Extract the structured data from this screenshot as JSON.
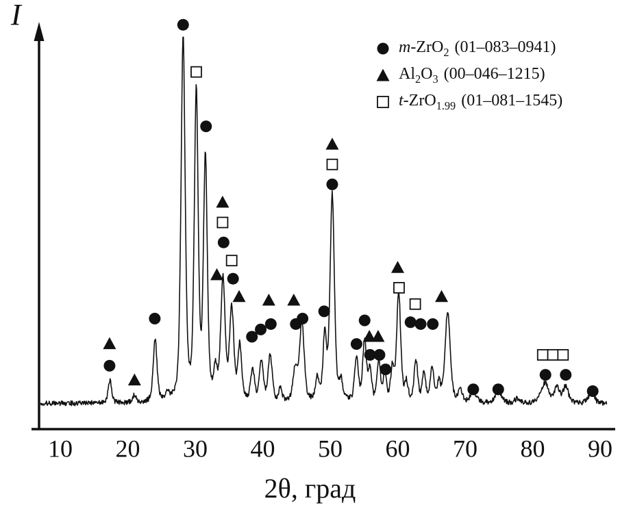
{
  "figure": {
    "ylabel": "I",
    "xlabel": "2θ, град"
  },
  "chart_data": {
    "type": "line",
    "subtype": "xrd-diffractogram",
    "title": "",
    "xlabel": "2θ, град",
    "ylabel": "I",
    "xlim": [
      7,
      91
    ],
    "x_ticks": [
      10,
      20,
      30,
      40,
      50,
      60,
      70,
      80,
      90
    ],
    "grid": false,
    "legend_position": "top-right",
    "curve_color": "#111111",
    "background_level": 1.6,
    "noise_amplitude": 1.4,
    "peaks_format": "[two_theta_deg, relative_intensity, half_width_deg]",
    "peaks": [
      [
        17.35,
        6.5,
        0.3
      ],
      [
        21.0,
        2.2,
        0.25
      ],
      [
        24.05,
        17,
        0.34
      ],
      [
        25.9,
        2.5,
        0.28
      ],
      [
        28.2,
        100,
        0.36
      ],
      [
        30.15,
        84,
        0.34
      ],
      [
        31.5,
        66,
        0.34
      ],
      [
        33.0,
        8,
        0.3
      ],
      [
        34.1,
        33,
        0.38
      ],
      [
        35.4,
        25,
        0.38
      ],
      [
        36.6,
        15,
        0.33
      ],
      [
        38.5,
        9,
        0.33
      ],
      [
        39.8,
        11,
        0.33
      ],
      [
        41.1,
        13,
        0.36
      ],
      [
        42.6,
        3.5,
        0.3
      ],
      [
        44.8,
        9,
        0.36
      ],
      [
        45.8,
        22,
        0.4
      ],
      [
        48.1,
        6,
        0.33
      ],
      [
        49.2,
        18,
        0.3
      ],
      [
        50.3,
        57,
        0.38
      ],
      [
        51.6,
        5,
        0.3
      ],
      [
        53.9,
        12,
        0.33
      ],
      [
        55.1,
        17,
        0.33
      ],
      [
        55.9,
        9,
        0.28
      ],
      [
        57.2,
        11,
        0.3
      ],
      [
        58.1,
        8,
        0.28
      ],
      [
        59.2,
        9,
        0.28
      ],
      [
        60.15,
        30,
        0.36
      ],
      [
        61.3,
        5,
        0.28
      ],
      [
        62.7,
        11,
        0.33
      ],
      [
        63.9,
        8,
        0.3
      ],
      [
        65.1,
        9,
        0.33
      ],
      [
        66.1,
        5,
        0.3
      ],
      [
        67.4,
        25,
        0.45
      ],
      [
        69.3,
        3,
        0.4
      ],
      [
        71.2,
        3.2,
        0.5
      ],
      [
        74.9,
        3.2,
        0.55
      ],
      [
        77.8,
        1.2,
        0.5
      ],
      [
        81.8,
        5.5,
        0.65
      ],
      [
        83.6,
        4,
        0.5
      ],
      [
        84.9,
        4.5,
        0.45
      ],
      [
        88.7,
        3,
        0.5
      ]
    ],
    "markers_format": "[two_theta_deg, relative_intensity_position]",
    "series_markers": [
      {
        "phase": "m-ZrO2",
        "pdf_card": "01–083–0941",
        "marker": "filled-circle",
        "points": [
          [
            17.3,
            12
          ],
          [
            24.0,
            25
          ],
          [
            28.2,
            106
          ],
          [
            31.6,
            78
          ],
          [
            34.2,
            46
          ],
          [
            35.6,
            36
          ],
          [
            38.4,
            20
          ],
          [
            39.7,
            22
          ],
          [
            41.2,
            23.5
          ],
          [
            44.9,
            23.5
          ],
          [
            45.9,
            25
          ],
          [
            49.1,
            27
          ],
          [
            50.3,
            62
          ],
          [
            53.9,
            18
          ],
          [
            55.1,
            24.5
          ],
          [
            55.9,
            15
          ],
          [
            57.3,
            15
          ],
          [
            58.2,
            11
          ],
          [
            61.9,
            24
          ],
          [
            63.4,
            23.5
          ],
          [
            65.2,
            23.5
          ],
          [
            71.2,
            5.5
          ],
          [
            74.9,
            5.5
          ],
          [
            81.9,
            9.5
          ],
          [
            84.9,
            9.5
          ],
          [
            88.9,
            5
          ]
        ]
      },
      {
        "phase": "Al2O3",
        "pdf_card": "00–046–1215",
        "marker": "filled-triangle",
        "points": [
          [
            17.3,
            18
          ],
          [
            21.0,
            8
          ],
          [
            33.2,
            37
          ],
          [
            34.05,
            57
          ],
          [
            36.5,
            31
          ],
          [
            40.9,
            30
          ],
          [
            44.6,
            30
          ],
          [
            50.3,
            73
          ],
          [
            55.8,
            20
          ],
          [
            57.1,
            20
          ],
          [
            60.0,
            39
          ],
          [
            66.5,
            31
          ]
        ]
      },
      {
        "phase": "t-ZrO1.99",
        "pdf_card": "01–081–1545",
        "marker": "open-square",
        "points": [
          [
            30.15,
            93
          ],
          [
            34.05,
            51.5
          ],
          [
            35.4,
            41
          ],
          [
            50.3,
            67.5
          ],
          [
            60.2,
            33.5
          ],
          [
            62.6,
            29
          ],
          [
            81.5,
            15
          ],
          [
            83.0,
            15
          ],
          [
            84.5,
            15
          ]
        ]
      }
    ]
  },
  "legend": {
    "items": [
      {
        "marker": "filled-circle",
        "italic_prefix": "m",
        "text1": "-ZrO",
        "sub1": "2",
        "text2": "",
        "sub2": "",
        "code": "(01–083–0941)"
      },
      {
        "marker": "filled-triangle",
        "italic_prefix": "",
        "text1": "Al",
        "sub1": "2",
        "text2": "O",
        "sub2": "3",
        "code": "(00–046–1215)"
      },
      {
        "marker": "open-square",
        "italic_prefix": "t",
        "text1": "-ZrO",
        "sub1": "1.99",
        "text2": "",
        "sub2": "",
        "code": "(01–081–1545)"
      }
    ]
  }
}
